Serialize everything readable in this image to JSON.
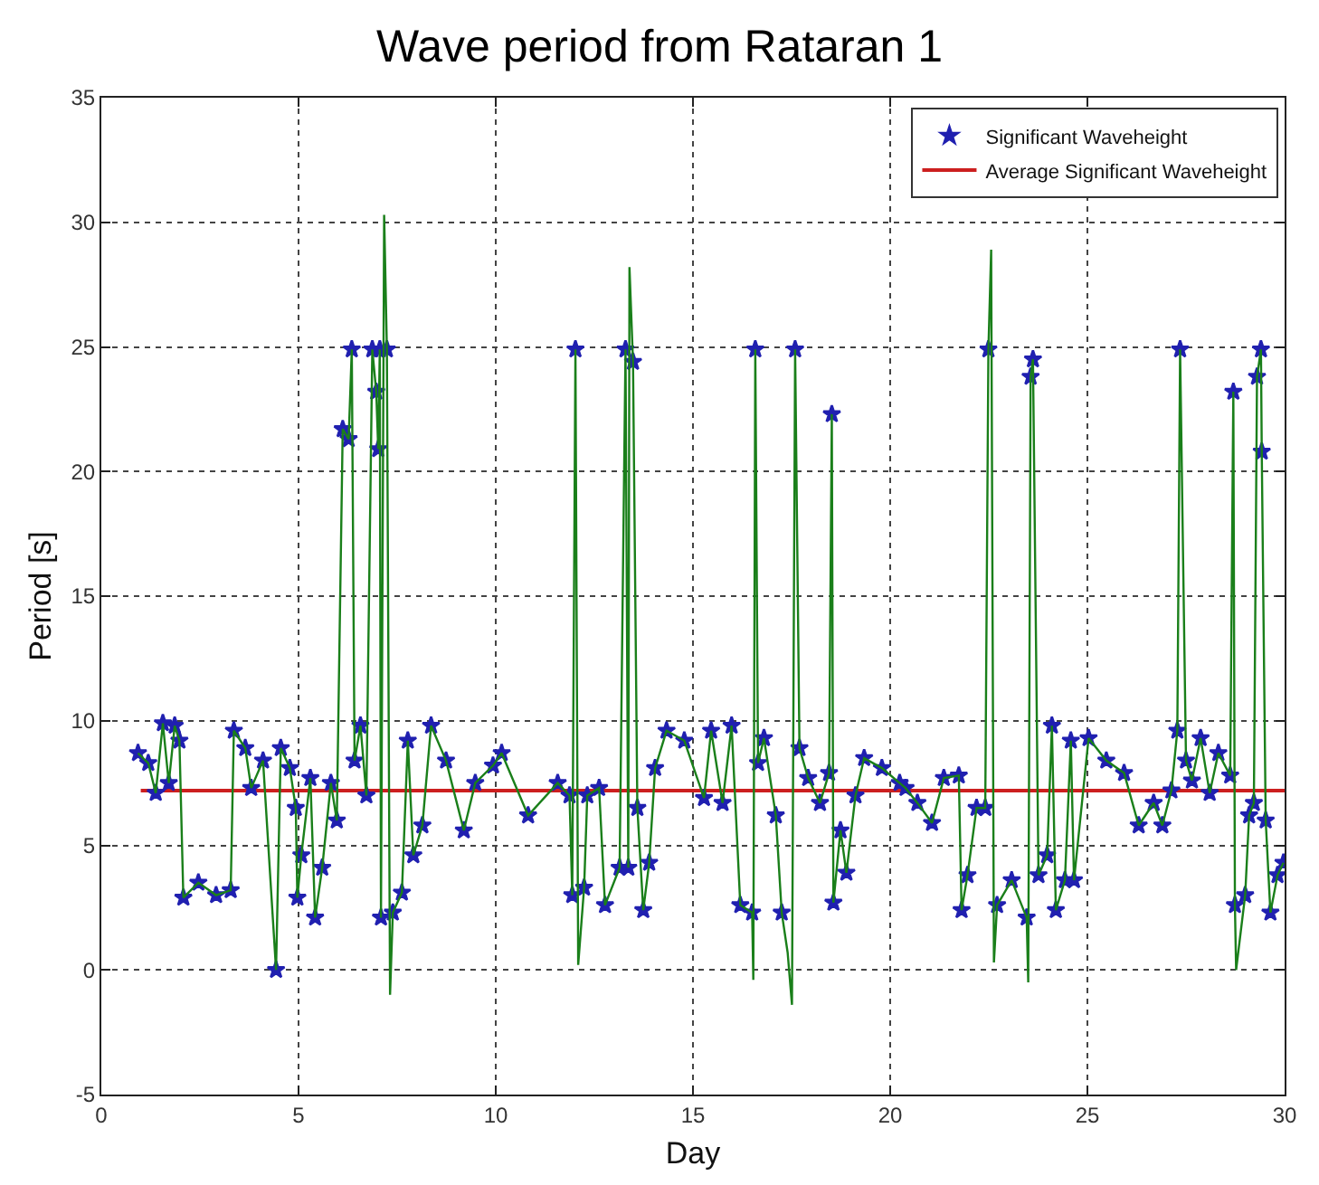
{
  "chart_data": {
    "type": "line",
    "title": "Wave period from Rataran 1",
    "xlabel": "Day",
    "ylabel": "Period [s]",
    "x": [
      0.93,
      1.19,
      1.38,
      1.56,
      1.71,
      1.86,
      1.98,
      2.08,
      2.46,
      2.91,
      3.28,
      3.36,
      3.65,
      3.8,
      4.1,
      4.43,
      4.55,
      4.78,
      4.93,
      4.97,
      5.07,
      5.3,
      5.42,
      5.6,
      5.82,
      5.97,
      6.12,
      6.27,
      6.35,
      6.42,
      6.57,
      6.72,
      6.87,
      6.97,
      7.02,
      7.06,
      7.09,
      7.17,
      7.24,
      7.32,
      7.39,
      7.62,
      7.77,
      7.91,
      8.14,
      8.36,
      8.74,
      9.19,
      9.48,
      9.93,
      10.15,
      10.82,
      11.57,
      11.87,
      11.94,
      12.02,
      12.09,
      12.24,
      12.32,
      12.62,
      12.77,
      13.14,
      13.29,
      13.36,
      13.39,
      13.48,
      13.59,
      13.74,
      13.89,
      14.04,
      14.33,
      14.78,
      15.28,
      15.46,
      15.75,
      15.98,
      16.2,
      16.5,
      16.53,
      16.58,
      16.65,
      16.8,
      17.1,
      17.25,
      17.4,
      17.51,
      17.59,
      17.7,
      17.92,
      18.22,
      18.45,
      18.52,
      18.56,
      18.74,
      18.89,
      19.12,
      19.34,
      19.79,
      20.24,
      20.39,
      20.69,
      21.06,
      21.36,
      21.74,
      21.81,
      21.96,
      22.19,
      22.41,
      22.49,
      22.56,
      22.63,
      22.71,
      23.08,
      23.46,
      23.5,
      23.56,
      23.62,
      23.76,
      23.98,
      24.1,
      24.2,
      24.43,
      24.58,
      24.66,
      25.03,
      25.48,
      25.93,
      26.3,
      26.68,
      26.9,
      27.13,
      27.28,
      27.35,
      27.5,
      27.65,
      27.87,
      28.1,
      28.32,
      28.62,
      28.7,
      28.74,
      28.77,
      29.0,
      29.1,
      29.22,
      29.3,
      29.4,
      29.42,
      29.52,
      29.64,
      29.82,
      29.97
    ],
    "series": [
      {
        "color": "#1a7f1a",
        "marker": "none",
        "line_style": "solid",
        "values": [
          8.7,
          8.3,
          7.1,
          9.9,
          7.5,
          9.8,
          9.2,
          2.9,
          3.5,
          3.0,
          3.2,
          9.6,
          8.9,
          7.3,
          8.4,
          0.0,
          8.9,
          8.1,
          6.5,
          2.9,
          4.6,
          7.7,
          2.1,
          4.1,
          7.5,
          6.0,
          21.7,
          21.3,
          24.9,
          8.4,
          9.8,
          7.0,
          24.9,
          23.2,
          20.9,
          24.9,
          2.1,
          30.3,
          24.9,
          -1.0,
          2.3,
          3.1,
          9.2,
          4.6,
          5.8,
          9.8,
          8.4,
          5.6,
          7.5,
          8.2,
          8.7,
          6.2,
          7.5,
          7.0,
          3.0,
          24.9,
          0.2,
          3.3,
          7.0,
          7.3,
          2.6,
          4.1,
          24.9,
          4.1,
          28.2,
          24.4,
          6.5,
          2.4,
          4.3,
          8.1,
          9.6,
          9.2,
          6.9,
          9.6,
          6.7,
          9.8,
          2.6,
          2.3,
          -0.4,
          24.9,
          8.3,
          9.3,
          6.2,
          2.3,
          0.7,
          -1.4,
          24.9,
          8.9,
          7.7,
          6.7,
          7.9,
          22.3,
          2.7,
          5.6,
          3.9,
          7.0,
          8.5,
          8.1,
          7.5,
          7.3,
          6.7,
          5.9,
          7.7,
          7.8,
          2.4,
          3.8,
          6.5,
          6.5,
          24.9,
          28.9,
          0.3,
          2.6,
          3.6,
          2.1,
          -0.5,
          23.8,
          24.5,
          3.8,
          4.6,
          9.8,
          2.4,
          3.6,
          9.2,
          3.6,
          9.3,
          8.4,
          7.9,
          5.8,
          6.7,
          5.8,
          7.2,
          9.6,
          24.9,
          8.4,
          7.6,
          9.3,
          7.1,
          8.7,
          7.8,
          23.2,
          2.6,
          0.0,
          3.0,
          6.2,
          6.7,
          23.8,
          24.9,
          20.8,
          6.0,
          2.3,
          3.8,
          4.3
        ]
      },
      {
        "type": "scatter",
        "name": "Significant Waveheight",
        "color": "#2020b0",
        "marker": "star",
        "values": [
          8.7,
          8.3,
          7.1,
          9.9,
          7.5,
          9.8,
          9.2,
          2.9,
          3.5,
          3.0,
          3.2,
          9.6,
          8.9,
          7.3,
          8.4,
          0.0,
          8.9,
          8.1,
          6.5,
          2.9,
          4.6,
          7.7,
          2.1,
          4.1,
          7.5,
          6.0,
          21.7,
          21.3,
          24.9,
          8.4,
          9.8,
          7.0,
          24.9,
          23.2,
          20.9,
          24.9,
          2.1,
          null,
          24.9,
          null,
          2.3,
          3.1,
          9.2,
          4.6,
          5.8,
          9.8,
          8.4,
          5.6,
          7.5,
          8.2,
          8.7,
          6.2,
          7.5,
          7.0,
          3.0,
          24.9,
          null,
          3.3,
          7.0,
          7.3,
          2.6,
          4.1,
          24.9,
          4.1,
          null,
          24.4,
          6.5,
          2.4,
          4.3,
          8.1,
          9.6,
          9.2,
          6.9,
          9.6,
          6.7,
          9.8,
          2.6,
          2.3,
          null,
          24.9,
          8.3,
          9.3,
          6.2,
          2.3,
          null,
          null,
          24.9,
          8.9,
          7.7,
          6.7,
          7.9,
          22.3,
          2.7,
          5.6,
          3.9,
          7.0,
          8.5,
          8.1,
          7.5,
          7.3,
          6.7,
          5.9,
          7.7,
          7.8,
          2.4,
          3.8,
          6.5,
          6.5,
          24.9,
          null,
          null,
          2.6,
          3.6,
          2.1,
          null,
          23.8,
          24.5,
          3.8,
          4.6,
          9.8,
          2.4,
          3.6,
          9.2,
          3.6,
          9.3,
          8.4,
          7.9,
          5.8,
          6.7,
          5.8,
          7.2,
          9.6,
          24.9,
          8.4,
          7.6,
          9.3,
          7.1,
          8.7,
          7.8,
          23.2,
          2.6,
          null,
          3.0,
          6.2,
          6.7,
          23.8,
          24.9,
          20.8,
          6.0,
          2.3,
          3.8,
          4.3
        ]
      },
      {
        "type": "line",
        "name": "Average Significant Waveheight",
        "color": "#cc1f1f",
        "marker": "none",
        "line_style": "solid",
        "x": [
          1,
          30
        ],
        "values": [
          7.2,
          7.2
        ]
      }
    ],
    "xlim": [
      0,
      30
    ],
    "xticks": [
      0,
      5,
      10,
      15,
      20,
      25,
      30
    ],
    "ylim": [
      -5,
      35
    ],
    "yticks": [
      -5,
      0,
      5,
      10,
      15,
      20,
      25,
      30,
      35
    ],
    "grid": true,
    "legend": "top right"
  }
}
